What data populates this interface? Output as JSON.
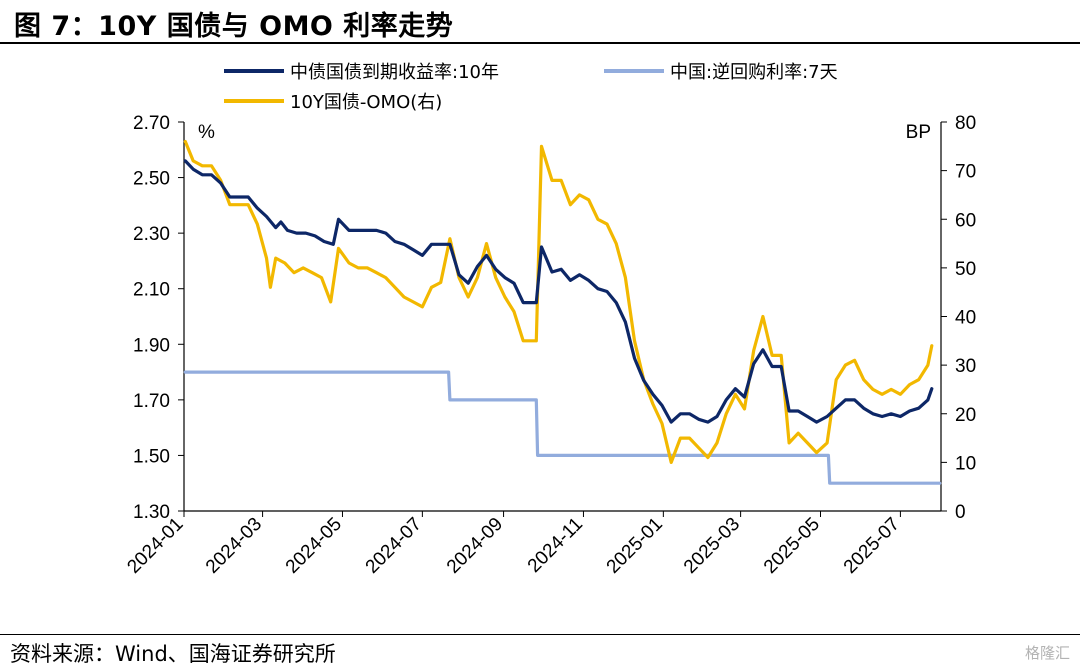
{
  "title": "图 7：10Y 国债与 OMO 利率走势",
  "source": "资料来源：Wind、国海证券研究所",
  "watermark": "格隆汇",
  "chart_data": {
    "type": "line",
    "left_unit": "%",
    "right_unit": "BP",
    "left_ylim": [
      1.3,
      2.7
    ],
    "left_ticks": [
      "2.70",
      "2.50",
      "2.30",
      "2.10",
      "1.90",
      "1.70",
      "1.50",
      "1.30"
    ],
    "right_ylim": [
      0,
      80
    ],
    "right_ticks": [
      "80",
      "70",
      "60",
      "50",
      "40",
      "30",
      "20",
      "10",
      "0"
    ],
    "x_range": [
      "2024-01-01",
      "2025-08-01"
    ],
    "x_ticks": [
      "2024-01",
      "2024-03",
      "2024-05",
      "2024-07",
      "2024-09",
      "2024-11",
      "2025-01",
      "2025-03",
      "2025-05",
      "2025-07"
    ],
    "grid": false,
    "legend_position": "top",
    "series": [
      {
        "name": "中债国债到期收益率:10年",
        "axis": "left",
        "color": "#0d2767",
        "points": [
          [
            "2024-01-02",
            2.56
          ],
          [
            "2024-01-08",
            2.53
          ],
          [
            "2024-01-15",
            2.51
          ],
          [
            "2024-01-22",
            2.51
          ],
          [
            "2024-01-29",
            2.48
          ],
          [
            "2024-02-05",
            2.43
          ],
          [
            "2024-02-19",
            2.43
          ],
          [
            "2024-02-26",
            2.39
          ],
          [
            "2024-03-04",
            2.36
          ],
          [
            "2024-03-11",
            2.32
          ],
          [
            "2024-03-15",
            2.34
          ],
          [
            "2024-03-20",
            2.31
          ],
          [
            "2024-03-27",
            2.3
          ],
          [
            "2024-04-03",
            2.3
          ],
          [
            "2024-04-10",
            2.29
          ],
          [
            "2024-04-17",
            2.27
          ],
          [
            "2024-04-24",
            2.26
          ],
          [
            "2024-04-28",
            2.35
          ],
          [
            "2024-05-06",
            2.31
          ],
          [
            "2024-05-13",
            2.31
          ],
          [
            "2024-05-20",
            2.31
          ],
          [
            "2024-05-27",
            2.31
          ],
          [
            "2024-06-03",
            2.3
          ],
          [
            "2024-06-10",
            2.27
          ],
          [
            "2024-06-17",
            2.26
          ],
          [
            "2024-06-24",
            2.24
          ],
          [
            "2024-07-01",
            2.22
          ],
          [
            "2024-07-08",
            2.26
          ],
          [
            "2024-07-15",
            2.26
          ],
          [
            "2024-07-22",
            2.26
          ],
          [
            "2024-07-29",
            2.15
          ],
          [
            "2024-08-05",
            2.12
          ],
          [
            "2024-08-12",
            2.18
          ],
          [
            "2024-08-19",
            2.22
          ],
          [
            "2024-08-26",
            2.17
          ],
          [
            "2024-09-02",
            2.14
          ],
          [
            "2024-09-09",
            2.12
          ],
          [
            "2024-09-16",
            2.05
          ],
          [
            "2024-09-23",
            2.05
          ],
          [
            "2024-09-26",
            2.05
          ],
          [
            "2024-09-30",
            2.25
          ],
          [
            "2024-10-08",
            2.16
          ],
          [
            "2024-10-15",
            2.17
          ],
          [
            "2024-10-22",
            2.13
          ],
          [
            "2024-10-29",
            2.15
          ],
          [
            "2024-11-05",
            2.13
          ],
          [
            "2024-11-12",
            2.1
          ],
          [
            "2024-11-19",
            2.09
          ],
          [
            "2024-11-26",
            2.05
          ],
          [
            "2024-12-03",
            1.98
          ],
          [
            "2024-12-10",
            1.85
          ],
          [
            "2024-12-17",
            1.77
          ],
          [
            "2024-12-24",
            1.72
          ],
          [
            "2024-12-31",
            1.68
          ],
          [
            "2025-01-07",
            1.62
          ],
          [
            "2025-01-14",
            1.65
          ],
          [
            "2025-01-21",
            1.65
          ],
          [
            "2025-01-28",
            1.63
          ],
          [
            "2025-02-04",
            1.62
          ],
          [
            "2025-02-11",
            1.64
          ],
          [
            "2025-02-18",
            1.7
          ],
          [
            "2025-02-25",
            1.74
          ],
          [
            "2025-03-04",
            1.71
          ],
          [
            "2025-03-11",
            1.83
          ],
          [
            "2025-03-18",
            1.88
          ],
          [
            "2025-03-25",
            1.82
          ],
          [
            "2025-04-01",
            1.82
          ],
          [
            "2025-04-07",
            1.66
          ],
          [
            "2025-04-14",
            1.66
          ],
          [
            "2025-04-21",
            1.64
          ],
          [
            "2025-04-28",
            1.62
          ],
          [
            "2025-05-06",
            1.64
          ],
          [
            "2025-05-13",
            1.67
          ],
          [
            "2025-05-20",
            1.7
          ],
          [
            "2025-05-27",
            1.7
          ],
          [
            "2025-06-03",
            1.67
          ],
          [
            "2025-06-10",
            1.65
          ],
          [
            "2025-06-17",
            1.64
          ],
          [
            "2025-06-24",
            1.65
          ],
          [
            "2025-07-01",
            1.64
          ],
          [
            "2025-07-08",
            1.66
          ],
          [
            "2025-07-15",
            1.67
          ],
          [
            "2025-07-22",
            1.7
          ],
          [
            "2025-07-25",
            1.74
          ]
        ]
      },
      {
        "name": "中国:逆回购利率:7天",
        "axis": "left",
        "color": "#92acdd",
        "points": [
          [
            "2024-01-02",
            1.8
          ],
          [
            "2024-07-21",
            1.8
          ],
          [
            "2024-07-22",
            1.7
          ],
          [
            "2024-09-26",
            1.7
          ],
          [
            "2024-09-27",
            1.5
          ],
          [
            "2025-05-07",
            1.5
          ],
          [
            "2025-05-08",
            1.4
          ],
          [
            "2025-07-31",
            1.4
          ]
        ]
      },
      {
        "name": "10Y国债-OMO(右)",
        "axis": "right",
        "color": "#f2b800",
        "points": [
          [
            "2024-01-02",
            76
          ],
          [
            "2024-01-08",
            72
          ],
          [
            "2024-01-15",
            71
          ],
          [
            "2024-01-22",
            71
          ],
          [
            "2024-01-29",
            68
          ],
          [
            "2024-02-05",
            63
          ],
          [
            "2024-02-19",
            63
          ],
          [
            "2024-02-26",
            59
          ],
          [
            "2024-03-04",
            52
          ],
          [
            "2024-03-07",
            46
          ],
          [
            "2024-03-11",
            52
          ],
          [
            "2024-03-18",
            51
          ],
          [
            "2024-03-25",
            49
          ],
          [
            "2024-04-01",
            50
          ],
          [
            "2024-04-08",
            49
          ],
          [
            "2024-04-15",
            48
          ],
          [
            "2024-04-22",
            43
          ],
          [
            "2024-04-28",
            54
          ],
          [
            "2024-05-06",
            51
          ],
          [
            "2024-05-13",
            50
          ],
          [
            "2024-05-20",
            50
          ],
          [
            "2024-05-27",
            49
          ],
          [
            "2024-06-03",
            48
          ],
          [
            "2024-06-10",
            46
          ],
          [
            "2024-06-17",
            44
          ],
          [
            "2024-06-24",
            43
          ],
          [
            "2024-07-01",
            42
          ],
          [
            "2024-07-08",
            46
          ],
          [
            "2024-07-15",
            47
          ],
          [
            "2024-07-22",
            56
          ],
          [
            "2024-07-29",
            48
          ],
          [
            "2024-08-05",
            44
          ],
          [
            "2024-08-12",
            48
          ],
          [
            "2024-08-19",
            55
          ],
          [
            "2024-08-26",
            48
          ],
          [
            "2024-09-02",
            44
          ],
          [
            "2024-09-09",
            41
          ],
          [
            "2024-09-16",
            35
          ],
          [
            "2024-09-23",
            35
          ],
          [
            "2024-09-26",
            35
          ],
          [
            "2024-09-30",
            75
          ],
          [
            "2024-10-08",
            68
          ],
          [
            "2024-10-15",
            68
          ],
          [
            "2024-10-22",
            63
          ],
          [
            "2024-10-29",
            65
          ],
          [
            "2024-11-05",
            64
          ],
          [
            "2024-11-12",
            60
          ],
          [
            "2024-11-19",
            59
          ],
          [
            "2024-11-26",
            55
          ],
          [
            "2024-12-03",
            48
          ],
          [
            "2024-12-10",
            35
          ],
          [
            "2024-12-17",
            27
          ],
          [
            "2024-12-24",
            22
          ],
          [
            "2024-12-31",
            18
          ],
          [
            "2025-01-07",
            10
          ],
          [
            "2025-01-14",
            15
          ],
          [
            "2025-01-21",
            15
          ],
          [
            "2025-01-28",
            13
          ],
          [
            "2025-02-04",
            11
          ],
          [
            "2025-02-11",
            14
          ],
          [
            "2025-02-18",
            20
          ],
          [
            "2025-02-25",
            24
          ],
          [
            "2025-03-04",
            21
          ],
          [
            "2025-03-11",
            33
          ],
          [
            "2025-03-18",
            40
          ],
          [
            "2025-03-25",
            32
          ],
          [
            "2025-04-01",
            32
          ],
          [
            "2025-04-07",
            14
          ],
          [
            "2025-04-14",
            16
          ],
          [
            "2025-04-21",
            14
          ],
          [
            "2025-04-28",
            12
          ],
          [
            "2025-05-06",
            14
          ],
          [
            "2025-05-13",
            27
          ],
          [
            "2025-05-20",
            30
          ],
          [
            "2025-05-27",
            31
          ],
          [
            "2025-06-03",
            27
          ],
          [
            "2025-06-10",
            25
          ],
          [
            "2025-06-17",
            24
          ],
          [
            "2025-06-24",
            25
          ],
          [
            "2025-07-01",
            24
          ],
          [
            "2025-07-08",
            26
          ],
          [
            "2025-07-15",
            27
          ],
          [
            "2025-07-22",
            30
          ],
          [
            "2025-07-25",
            34
          ]
        ]
      }
    ]
  }
}
